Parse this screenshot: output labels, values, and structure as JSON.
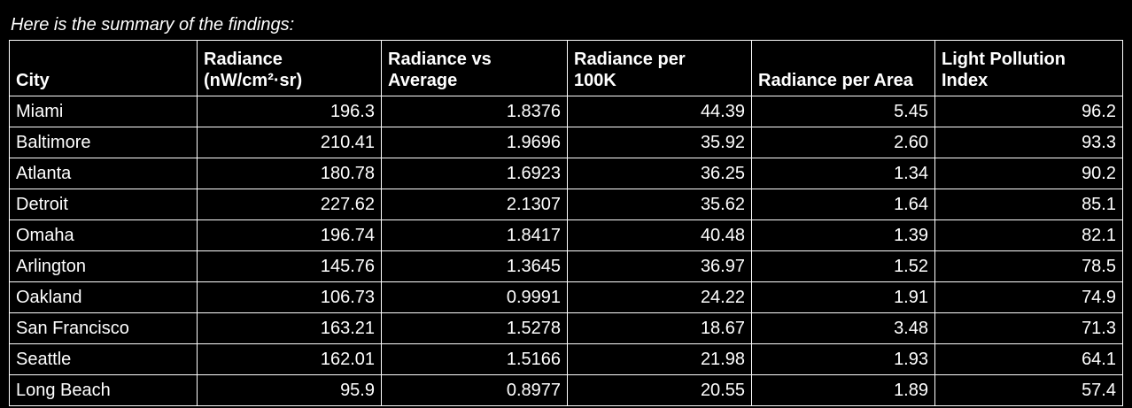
{
  "intro": "Here is the summary of the findings:",
  "colors": {
    "background": "#000000",
    "text": "#ffffff",
    "border": "#ffffff"
  },
  "table": {
    "columns": [
      {
        "key": "city",
        "label": "City",
        "align": "left"
      },
      {
        "key": "radiance",
        "label": "Radiance\n(nW/cm²·sr)",
        "align": "right"
      },
      {
        "key": "radiance-vs-average",
        "label": "Radiance vs\nAverage",
        "align": "right"
      },
      {
        "key": "radiance-per-100k",
        "label": "Radiance per\n100K",
        "align": "right"
      },
      {
        "key": "radiance-per-area",
        "label": "Radiance per Area",
        "align": "right"
      },
      {
        "key": "light-pollution-index",
        "label": "Light Pollution\nIndex",
        "align": "right"
      }
    ],
    "rows": [
      [
        "Miami",
        "196.3",
        "1.8376",
        "44.39",
        "5.45",
        "96.2"
      ],
      [
        "Baltimore",
        "210.41",
        "1.9696",
        "35.92",
        "2.60",
        "93.3"
      ],
      [
        "Atlanta",
        "180.78",
        "1.6923",
        "36.25",
        "1.34",
        "90.2"
      ],
      [
        "Detroit",
        "227.62",
        "2.1307",
        "35.62",
        "1.64",
        "85.1"
      ],
      [
        "Omaha",
        "196.74",
        "1.8417",
        "40.48",
        "1.39",
        "82.1"
      ],
      [
        "Arlington",
        "145.76",
        "1.3645",
        "36.97",
        "1.52",
        "78.5"
      ],
      [
        "Oakland",
        "106.73",
        "0.9991",
        "24.22",
        "1.91",
        "74.9"
      ],
      [
        "San Francisco",
        "163.21",
        "1.5278",
        "18.67",
        "3.48",
        "71.3"
      ],
      [
        "Seattle",
        "162.01",
        "1.5166",
        "21.98",
        "1.93",
        "64.1"
      ],
      [
        "Long Beach",
        "95.9",
        "0.8977",
        "20.55",
        "1.89",
        "57.4"
      ]
    ]
  }
}
